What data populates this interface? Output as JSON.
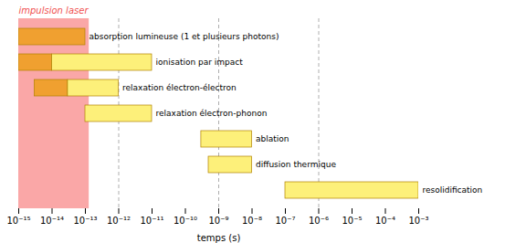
{
  "chart_data": {
    "type": "timeline",
    "xlabel": "temps (s)",
    "log": "x",
    "tick_labels": "x",
    "xlim": [
      1e-15,
      0.001
    ],
    "xticks": [
      {
        "value": 1e-15,
        "label": "10⁻¹⁵"
      },
      {
        "value": 1e-14,
        "label": "10⁻¹⁴"
      },
      {
        "value": 1e-13,
        "label": "10⁻¹³"
      },
      {
        "value": 1e-12,
        "label": "10⁻¹²"
      },
      {
        "value": 1e-11,
        "label": "10⁻¹¹"
      },
      {
        "value": 1e-10,
        "label": "10⁻¹⁰"
      },
      {
        "value": 1e-09,
        "label": "10⁻⁹"
      },
      {
        "value": 1e-08,
        "label": "10⁻⁸"
      },
      {
        "value": 1e-07,
        "label": "10⁻⁷"
      },
      {
        "value": 1e-06,
        "label": "10⁻⁶"
      },
      {
        "value": 1e-05,
        "label": "10⁻⁵"
      },
      {
        "value": 0.0001,
        "label": "10⁻⁴"
      },
      {
        "value": 0.001,
        "label": "10⁻³"
      }
    ],
    "categories": [
      "absorption lumineuse (1 et plusieurs photons)",
      "ionisation par impact",
      "relaxation électron-électron",
      "relaxation électron-phonon",
      "ablation",
      "diffusion thermique",
      "resolidification"
    ],
    "x_start": [
      1e-15,
      1e-15,
      3e-15,
      1e-13,
      3e-10,
      5e-10,
      1e-07
    ],
    "x_orange_end": [
      1e-13,
      1e-14,
      3e-14,
      1e-13,
      3e-10,
      5e-10,
      1e-07
    ],
    "x_end": [
      1e-13,
      1e-11,
      1e-12,
      1e-11,
      1e-08,
      1e-08,
      0.001
    ],
    "colors": [
      "#f0a030",
      "#fdf07a"
    ],
    "edge_color": "#b08000",
    "laser_pulse_end": 1.3e-13,
    "laser_color": "#f87878",
    "dashed_lines": [
      1e-12,
      1e-09,
      1e-06
    ],
    "annotations": [
      {
        "text": "impulsion laser",
        "color": "#f05050"
      }
    ]
  }
}
